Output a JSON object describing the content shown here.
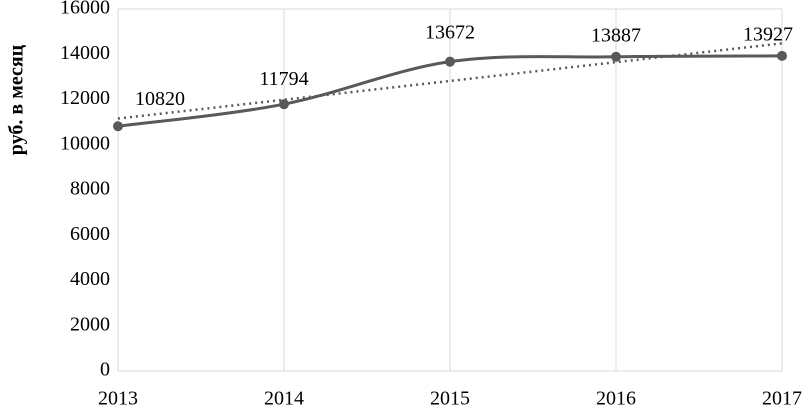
{
  "chart_data": {
    "type": "line",
    "y_label": "руб. в месяц",
    "x": [
      2013,
      2014,
      2015,
      2016,
      2017
    ],
    "series": [
      {
        "color": "#595959",
        "values": [
          10820,
          11794,
          13672,
          13887,
          13927
        ]
      }
    ],
    "xlim": [
      2013,
      2017
    ],
    "xticks": [
      2013,
      2014,
      2015,
      2016,
      2017
    ],
    "ylim": [
      0,
      16000
    ],
    "yticks": [
      0,
      2000,
      4000,
      6000,
      8000,
      10000,
      12000,
      14000,
      16000
    ],
    "grid": true,
    "smooth": true,
    "trendline": true,
    "data_labels": true
  }
}
